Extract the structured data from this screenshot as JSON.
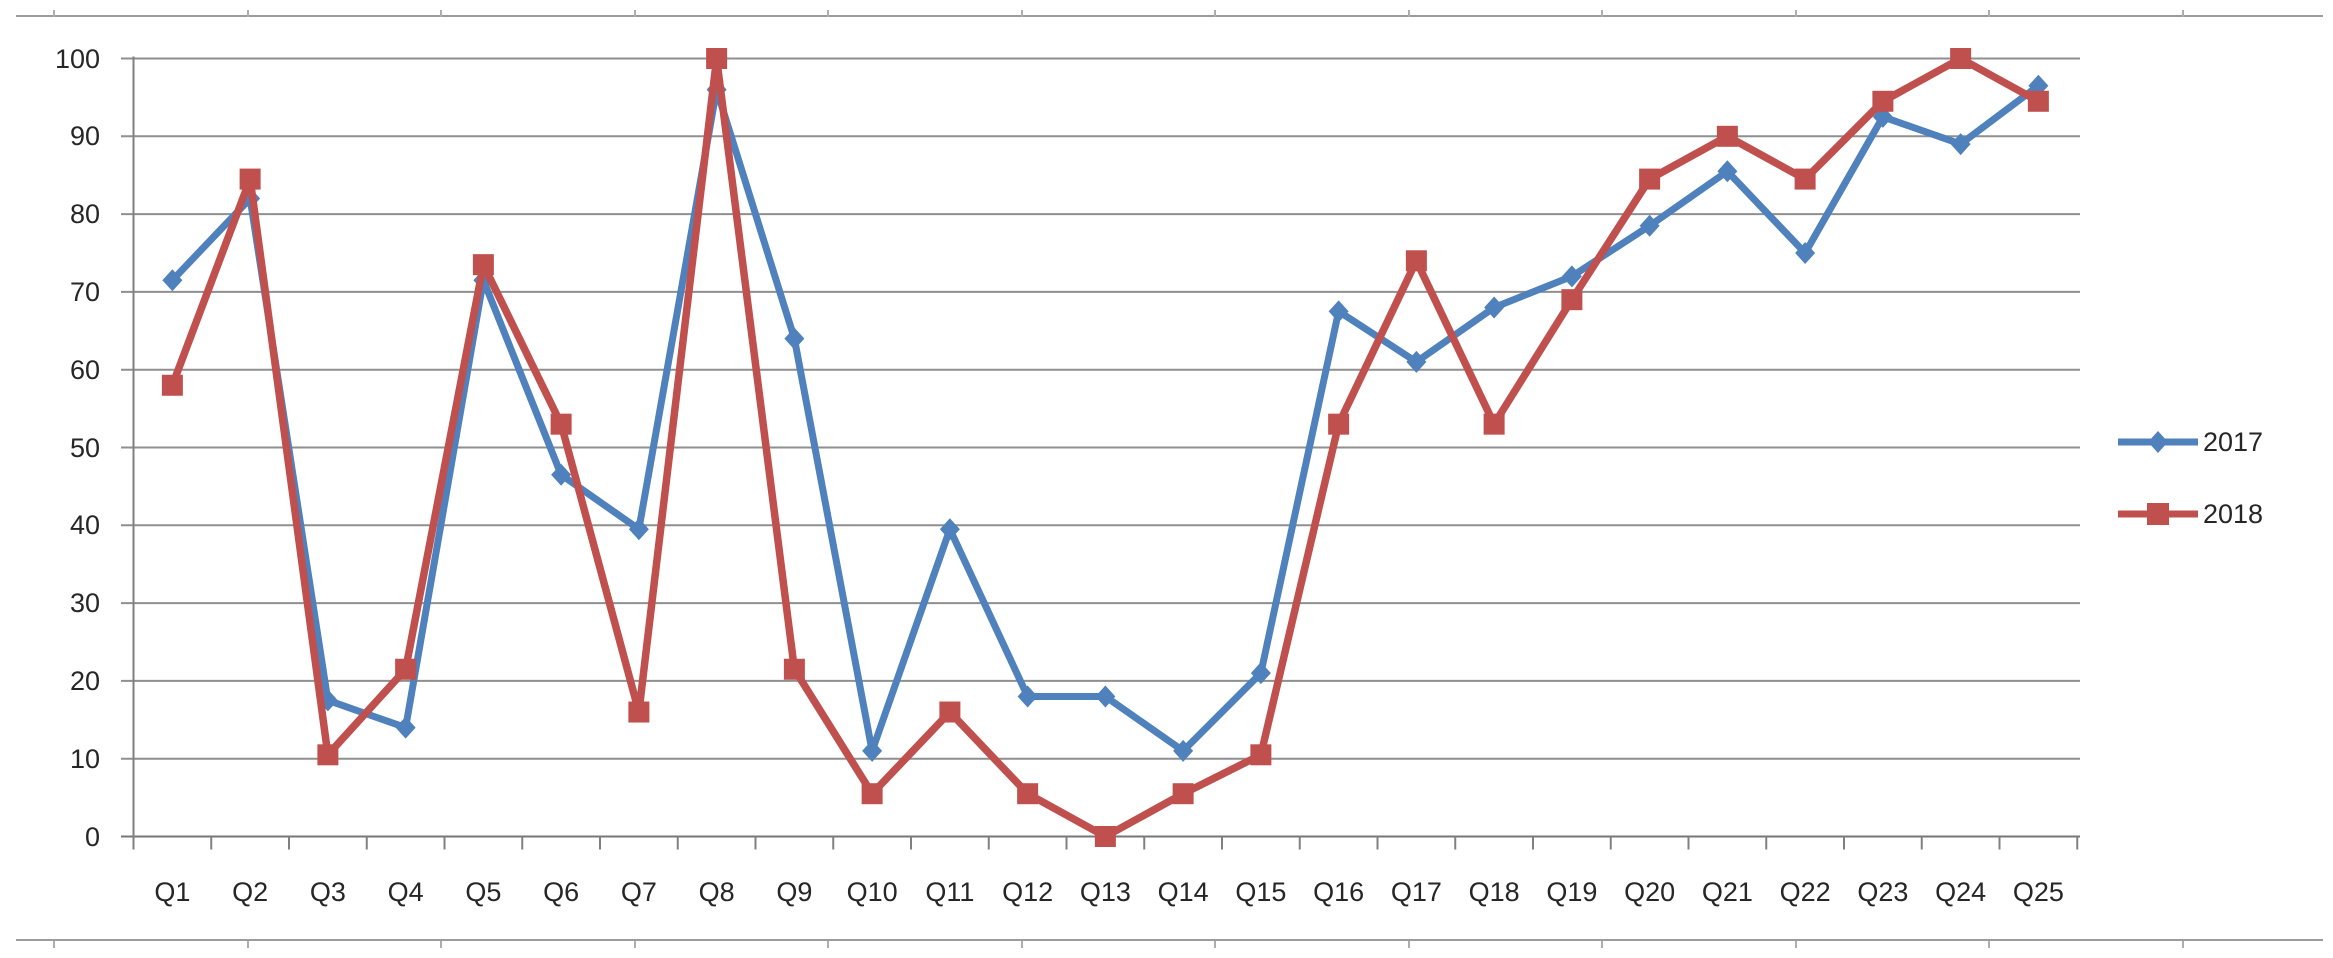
{
  "chart_data": {
    "type": "line",
    "title": "",
    "xlabel": "",
    "ylabel": "",
    "categories": [
      "Q1",
      "Q2",
      "Q3",
      "Q4",
      "Q5",
      "Q6",
      "Q7",
      "Q8",
      "Q9",
      "Q10",
      "Q11",
      "Q12",
      "Q13",
      "Q14",
      "Q15",
      "Q16",
      "Q17",
      "Q18",
      "Q19",
      "Q20",
      "Q21",
      "Q22",
      "Q23",
      "Q24",
      "Q25"
    ],
    "yticks": [
      0,
      10,
      20,
      30,
      40,
      50,
      60,
      70,
      80,
      90,
      100
    ],
    "ylim": [
      0,
      100
    ],
    "grid": "horizontal",
    "legend_position": "right",
    "series": [
      {
        "name": "2017",
        "color": "#4F81BD",
        "marker": "diamond",
        "values": [
          71.5,
          82,
          17.5,
          14,
          71.5,
          46.5,
          39.5,
          96,
          64,
          11,
          39.5,
          18,
          18,
          11,
          21,
          67.5,
          61,
          68,
          72,
          78.5,
          85.5,
          75,
          92.5,
          89,
          96.5
        ]
      },
      {
        "name": "2018",
        "color": "#C0504D",
        "marker": "square",
        "values": [
          58,
          84.5,
          10.5,
          21.5,
          73.5,
          53,
          16,
          100,
          21.5,
          5.5,
          16,
          5.5,
          0,
          5.5,
          10.5,
          53,
          74,
          53,
          69,
          84.5,
          90,
          84.5,
          94.5,
          100,
          94.5
        ]
      }
    ]
  },
  "colors": {
    "gridline": "#8f8f8f",
    "zero_axis": "#767676",
    "y_axis_line": "#7f7f7f",
    "tick": "#808080",
    "axis_text": "#262626",
    "sheet_border": "#9c9c9c",
    "background": "#ffffff"
  }
}
